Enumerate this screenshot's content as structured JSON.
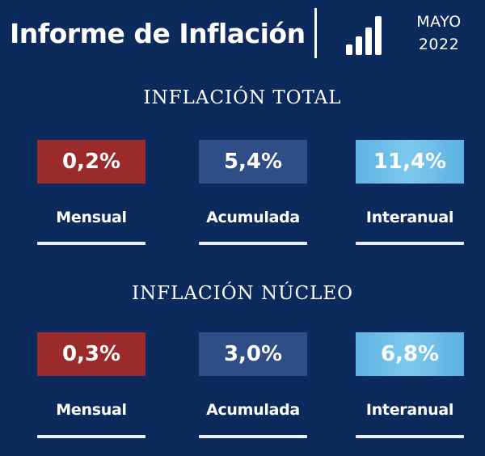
{
  "header": {
    "title": "Informe de Inflación",
    "month": "MAYO",
    "year": "2022",
    "icon": "bar-chart-icon"
  },
  "colors": {
    "background": "#0d2a5c",
    "monthly": "#9b2a2a",
    "accumulated": "#2f4d87",
    "annual": "#6cbfea"
  },
  "sections": [
    {
      "title": "INFLACIÓN TOTAL",
      "items": [
        {
          "value": "0,2%",
          "label": "Mensual"
        },
        {
          "value": "5,4%",
          "label": "Acumulada"
        },
        {
          "value": "11,4%",
          "label": "Interanual"
        }
      ]
    },
    {
      "title": "INFLACIÓN NÚCLEO",
      "items": [
        {
          "value": "0,3%",
          "label": "Mensual"
        },
        {
          "value": "3,0%",
          "label": "Acumulada"
        },
        {
          "value": "6,8%",
          "label": "Interanual"
        }
      ]
    }
  ]
}
